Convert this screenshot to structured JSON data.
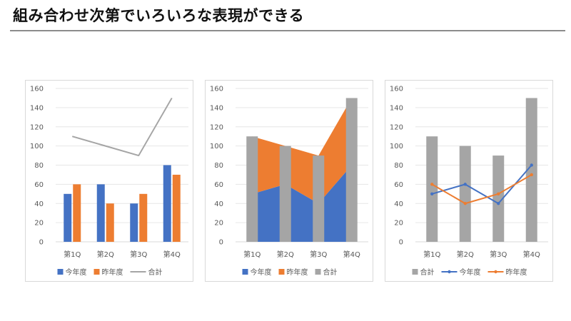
{
  "page": {
    "title": "組み合わせ次第でいろいろな表現ができる"
  },
  "colors": {
    "this_year": "#4472C4",
    "last_year": "#ED7D31",
    "total": "#A5A5A5",
    "grid": "#E6E6E6",
    "axis_text": "#595959"
  },
  "chart_data": [
    {
      "type": "bar",
      "combo": {
        "今年度": "bar",
        "昨年度": "bar",
        "合計": "line"
      },
      "categories": [
        "第1Q",
        "第2Q",
        "第3Q",
        "第4Q"
      ],
      "series": [
        {
          "name": "今年度",
          "values": [
            50,
            60,
            40,
            80
          ]
        },
        {
          "name": "昨年度",
          "values": [
            60,
            40,
            50,
            70
          ]
        },
        {
          "name": "合計",
          "values": [
            110,
            100,
            90,
            150
          ]
        }
      ],
      "ylim": [
        0,
        160
      ],
      "yticks": [
        0,
        20,
        40,
        60,
        80,
        100,
        120,
        140,
        160
      ],
      "grid": true,
      "legend_position": "bottom"
    },
    {
      "type": "area",
      "combo": {
        "今年度": "stacked-area",
        "昨年度": "stacked-area",
        "合計": "bar"
      },
      "categories": [
        "第1Q",
        "第2Q",
        "第3Q",
        "第4Q"
      ],
      "series": [
        {
          "name": "今年度",
          "values": [
            50,
            60,
            40,
            80
          ]
        },
        {
          "name": "昨年度",
          "values": [
            60,
            40,
            50,
            70
          ]
        },
        {
          "name": "合計",
          "values": [
            110,
            100,
            90,
            150
          ]
        }
      ],
      "ylim": [
        0,
        160
      ],
      "yticks": [
        0,
        20,
        40,
        60,
        80,
        100,
        120,
        140,
        160
      ],
      "grid": true,
      "legend_position": "bottom"
    },
    {
      "type": "bar",
      "combo": {
        "合計": "bar",
        "今年度": "line-markers",
        "昨年度": "line-markers"
      },
      "categories": [
        "第1Q",
        "第2Q",
        "第3Q",
        "第4Q"
      ],
      "series": [
        {
          "name": "合計",
          "values": [
            110,
            100,
            90,
            150
          ]
        },
        {
          "name": "今年度",
          "values": [
            50,
            60,
            40,
            80
          ]
        },
        {
          "name": "昨年度",
          "values": [
            60,
            40,
            50,
            70
          ]
        }
      ],
      "ylim": [
        0,
        160
      ],
      "yticks": [
        0,
        20,
        40,
        60,
        80,
        100,
        120,
        140,
        160
      ],
      "grid": true,
      "legend_position": "bottom"
    }
  ]
}
